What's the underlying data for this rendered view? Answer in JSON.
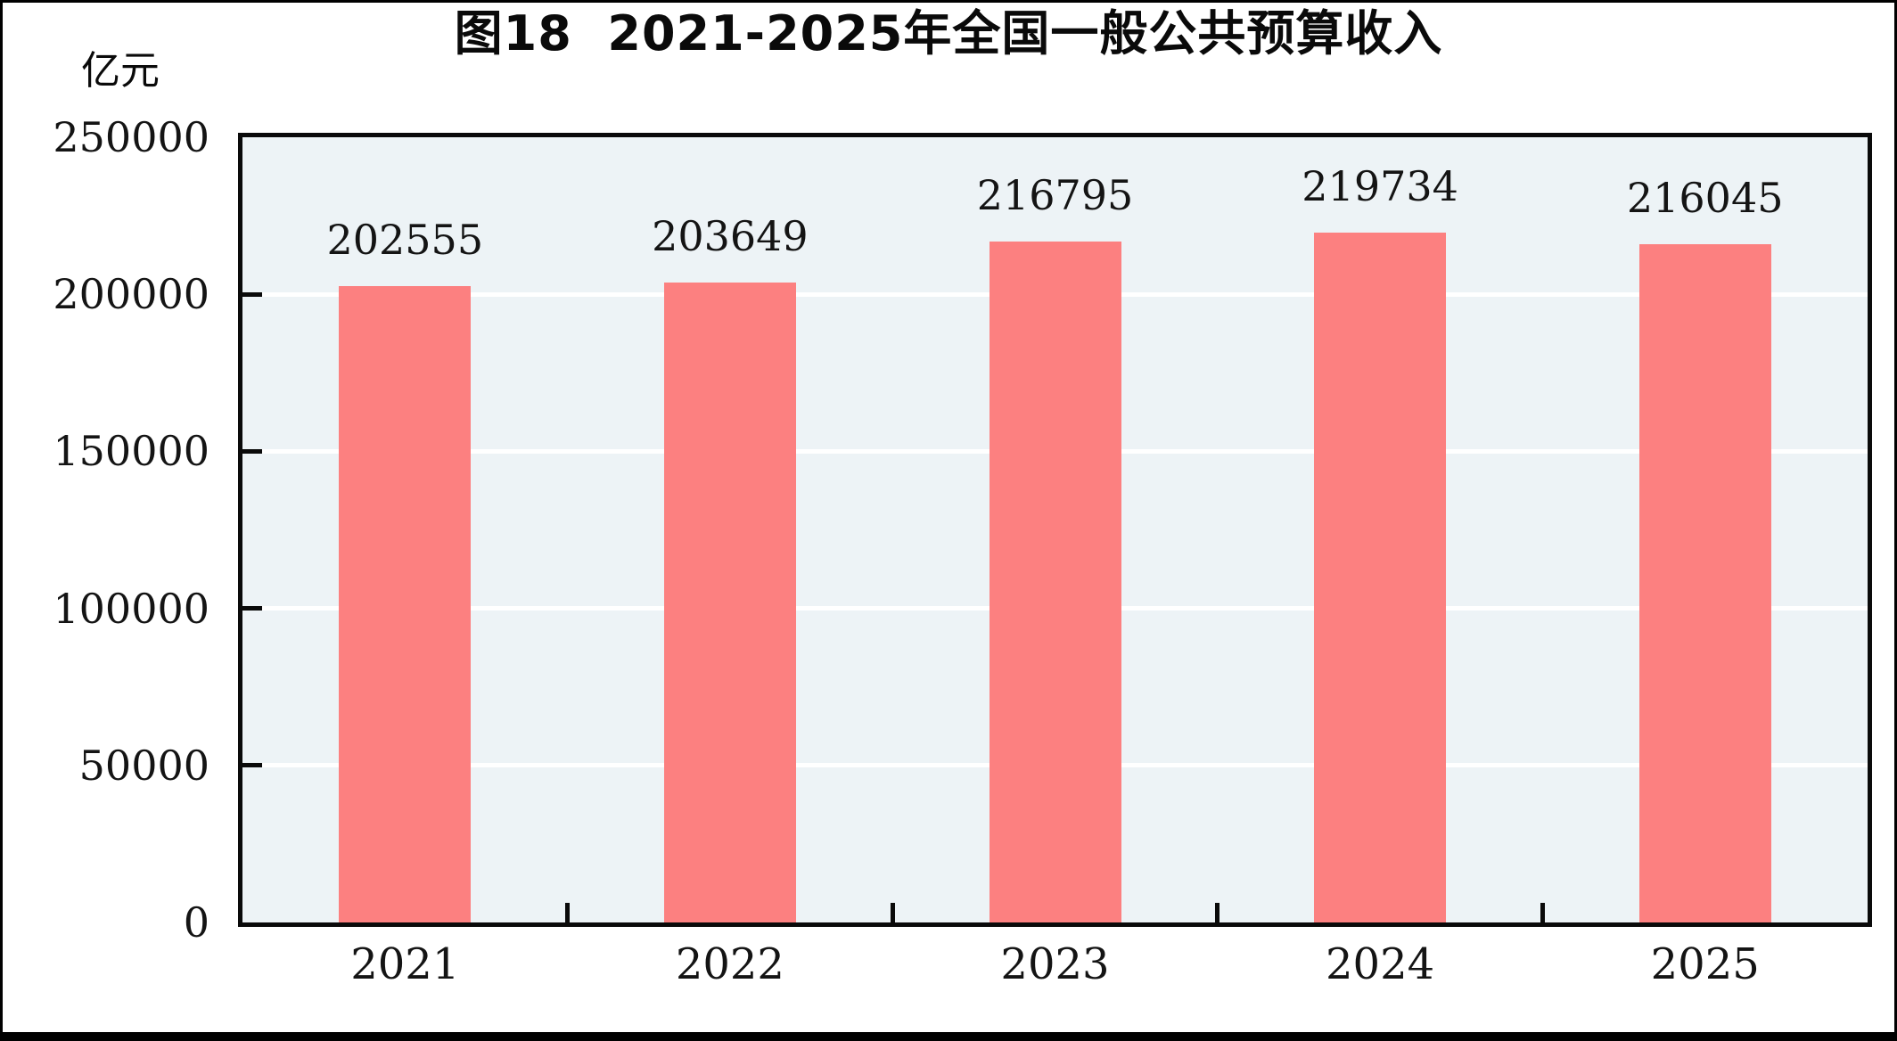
{
  "title": "图18  2021-2025年全国一般公共预算收入",
  "y_axis": {
    "unit_label": "亿元",
    "tick_labels": [
      "0",
      "50000",
      "100000",
      "150000",
      "200000",
      "250000"
    ]
  },
  "chart_data": {
    "type": "bar",
    "title": "图18  2021-2025年全国一般公共预算收入",
    "categories": [
      "2021",
      "2022",
      "2023",
      "2024",
      "2025"
    ],
    "values": [
      202555,
      203649,
      216795,
      219734,
      216045
    ],
    "data_labels": [
      "202555",
      "203649",
      "216795",
      "219734",
      "216045"
    ],
    "xlabel": "",
    "ylabel": "亿元",
    "ylim": [
      0,
      250000
    ],
    "ytick_step": 50000,
    "grid": true,
    "legend_position": "none",
    "colors": {
      "bar": "#FC8080",
      "plot_background": "#EDF3F6",
      "gridline": "#FFFFFF",
      "axis_frame": "#0A0A0A",
      "text": "#141414"
    }
  }
}
